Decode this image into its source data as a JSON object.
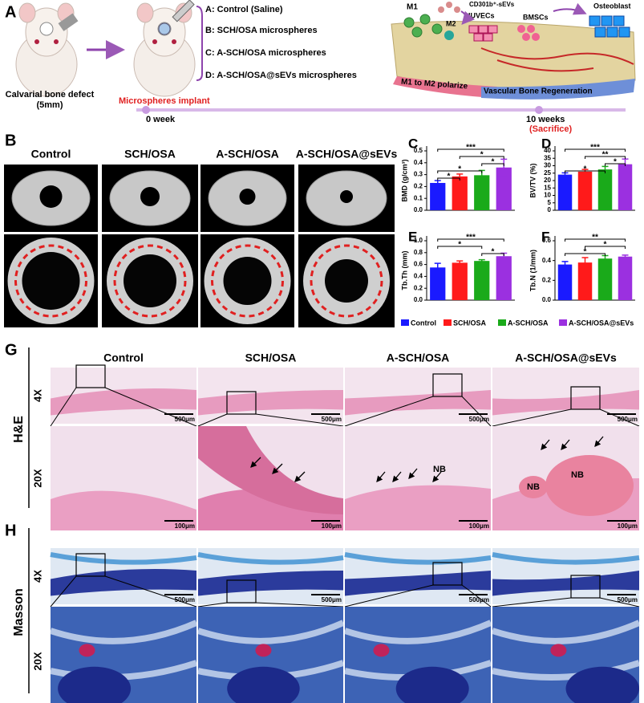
{
  "panel_a": {
    "label": "A",
    "model": [
      "Calvarial bone defect",
      "(5mm)"
    ],
    "groups": [
      "A: Control (Saline)",
      "B: SCH/OSA microspheres",
      "C: A-SCH/OSA microspheres",
      "D: A-SCH/OSA@sEVs microspheres"
    ],
    "implant": "Microspheres implant",
    "timeline": {
      "start": "0 week",
      "end": "10 weeks",
      "end_note": "(Sacrifice)"
    },
    "schematic": {
      "m1": "M1",
      "sevs": "CD301b⁺-sEVs",
      "m2": "M2",
      "huvecs": "HUVECs",
      "bmscs": "BMSCs",
      "osteoblast": "Osteoblast",
      "polarize": "M1 to M2 polarize",
      "regeneration": "Vascular Bone Regeneration"
    }
  },
  "panel_b": {
    "label": "B",
    "columns": [
      "Control",
      "SCH/OSA",
      "A-SCH/OSA",
      "A-SCH/OSA@sEVs"
    ]
  },
  "chart_data": [
    {
      "panel": "C",
      "type": "bar",
      "ylabel": "BMD (g/cm³)",
      "categories": [
        "Control",
        "SCH/OSA",
        "A-SCH/OSA",
        "A-SCH/OSA@sEVs"
      ],
      "values": [
        0.23,
        0.285,
        0.295,
        0.36
      ],
      "errors": [
        0.02,
        0.02,
        0.04,
        0.07
      ],
      "colors": [
        "#1a1aff",
        "#ff1a1a",
        "#1aaa1a",
        "#9b30e0"
      ],
      "ylim": [
        0,
        0.5
      ],
      "yticks": [
        {
          "value": 0,
          "label": "0.0"
        },
        0.1,
        0.2,
        0.3,
        0.4,
        0.5
      ],
      "annotations": [
        "***",
        "*",
        "*",
        "*",
        "*"
      ]
    },
    {
      "panel": "D",
      "type": "bar",
      "ylabel": "BV/TV (%)",
      "categories": [
        "Control",
        "SCH/OSA",
        "A-SCH/OSA",
        "A-SCH/OSA@sEVs"
      ],
      "values": [
        24,
        26,
        27.5,
        31
      ],
      "errors": [
        1.2,
        1.5,
        2,
        3.5
      ],
      "colors": [
        "#1a1aff",
        "#ff1a1a",
        "#1aaa1a",
        "#9b30e0"
      ],
      "ylim": [
        0,
        40
      ],
      "yticks": [
        0,
        5,
        10,
        15,
        20,
        25,
        30,
        35,
        40
      ],
      "annotations": [
        "***",
        "**",
        "*",
        "*"
      ]
    },
    {
      "panel": "E",
      "type": "bar",
      "ylabel": "Tb.Th (mm)",
      "categories": [
        "Control",
        "SCH/OSA",
        "A-SCH/OSA",
        "A-SCH/OSA@sEVs"
      ],
      "values": [
        0.55,
        0.63,
        0.66,
        0.74
      ],
      "errors": [
        0.07,
        0.03,
        0.02,
        0.05
      ],
      "colors": [
        "#1a1aff",
        "#ff1a1a",
        "#1aaa1a",
        "#9b30e0"
      ],
      "ylim": [
        0,
        1
      ],
      "yticks": [
        {
          "value": 0,
          "label": "0.0"
        },
        0.2,
        0.4,
        0.6,
        0.8,
        {
          "value": 1,
          "label": "1.0"
        }
      ],
      "annotations": [
        "***",
        "*",
        "*"
      ]
    },
    {
      "panel": "F",
      "type": "bar",
      "ylabel": "Tb.N (1/mm)",
      "categories": [
        "Control",
        "SCH/OSA",
        "A-SCH/OSA",
        "A-SCH/OSA@sEVs"
      ],
      "values": [
        0.36,
        0.38,
        0.42,
        0.44
      ],
      "errors": [
        0.03,
        0.05,
        0.03,
        0.015
      ],
      "colors": [
        "#1a1aff",
        "#ff1a1a",
        "#1aaa1a",
        "#9b30e0"
      ],
      "ylim": [
        0,
        0.6
      ],
      "yticks": [
        {
          "value": 0,
          "label": "0.0"
        },
        0.2,
        0.4,
        0.6
      ],
      "annotations": [
        "**",
        "*",
        "*"
      ]
    }
  ],
  "panel_g": {
    "label": "G",
    "stain": "H&E",
    "rows": [
      "4X",
      "20X"
    ],
    "scales": [
      "500μm",
      "100μm"
    ],
    "bone_label": "NB"
  },
  "panel_h": {
    "label": "H",
    "stain": "Masson",
    "rows": [
      "4X",
      "20X"
    ]
  }
}
